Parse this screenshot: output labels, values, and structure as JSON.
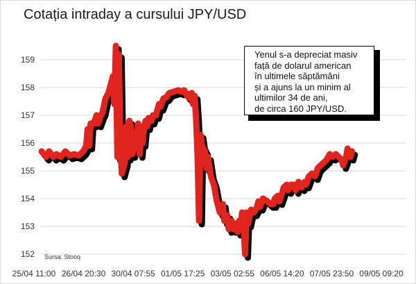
{
  "chart_data": {
    "type": "line",
    "title": "Cotația intraday a cursului JPY/USD",
    "xlabel": "",
    "ylabel": "",
    "ylim": [
      151.7,
      159.9
    ],
    "grid": true,
    "source": "Sursa: Stooq",
    "annotation": [
      "Yenul s-a depreciat masiv",
      "față de dolarul american",
      "în ultimele săptămâni",
      "și a ajuns la un minim al",
      "ultimilor 34 de ani,",
      "de circa 160 JPY/USD."
    ],
    "yticks": [
      152,
      153,
      154,
      155,
      156,
      157,
      158,
      159
    ],
    "xticks": [
      "25/04 11:00",
      "26/04 20:30",
      "30/04 07:55",
      "01/05 17:25",
      "03/05 02:55",
      "06/05 14:20",
      "07/05 23:50",
      "09/05 09:20"
    ],
    "x_count": 240,
    "series": [
      {
        "color": "#e0241e",
        "points": [
          [
            0,
            155.7
          ],
          [
            3,
            155.5
          ],
          [
            5,
            155.7
          ],
          [
            8,
            155.5
          ],
          [
            10,
            155.6
          ],
          [
            13,
            155.5
          ],
          [
            16,
            155.7
          ],
          [
            19,
            155.55
          ],
          [
            22,
            155.6
          ],
          [
            25,
            155.55
          ],
          [
            28,
            155.7
          ],
          [
            30,
            155.9
          ],
          [
            31,
            156.5
          ],
          [
            32,
            155.9
          ],
          [
            33,
            156.7
          ],
          [
            35,
            156.7
          ],
          [
            37,
            157.0
          ],
          [
            38,
            156.7
          ],
          [
            40,
            157.0
          ],
          [
            41,
            157.1
          ],
          [
            43,
            157.6
          ],
          [
            45,
            157.8
          ],
          [
            47,
            158.2
          ],
          [
            48,
            158.4
          ],
          [
            49,
            157.4
          ],
          [
            50,
            159.5
          ],
          [
            51,
            155.5
          ],
          [
            52,
            159.2
          ],
          [
            53,
            156.0
          ],
          [
            54,
            154.9
          ],
          [
            56,
            155.3
          ],
          [
            57,
            156.6
          ],
          [
            58,
            155.5
          ],
          [
            59,
            156.8
          ],
          [
            60,
            156.6
          ],
          [
            61,
            155.6
          ],
          [
            62,
            155.8
          ],
          [
            63,
            156.4
          ],
          [
            64,
            155.9
          ],
          [
            65,
            156.7
          ],
          [
            66,
            155.6
          ],
          [
            67,
            156.2
          ],
          [
            68,
            156.0
          ],
          [
            69,
            156.6
          ],
          [
            70,
            156.8
          ],
          [
            71,
            156.6
          ],
          [
            72,
            156.9
          ],
          [
            74,
            156.8
          ],
          [
            75,
            157.0
          ],
          [
            77,
            157.0
          ],
          [
            79,
            157.4
          ],
          [
            80,
            157.3
          ],
          [
            82,
            157.6
          ],
          [
            84,
            157.65
          ],
          [
            86,
            157.8
          ],
          [
            89,
            157.85
          ],
          [
            92,
            157.9
          ],
          [
            94,
            157.85
          ],
          [
            96,
            157.9
          ],
          [
            98,
            157.7
          ],
          [
            100,
            157.6
          ],
          [
            101,
            157.8
          ],
          [
            102,
            157.4
          ],
          [
            103,
            157.7
          ],
          [
            104,
            156.9
          ],
          [
            105,
            155.6
          ],
          [
            106,
            153.2
          ],
          [
            107,
            156.3
          ],
          [
            108,
            155.9
          ],
          [
            110,
            155.7
          ],
          [
            111,
            155.1
          ],
          [
            112,
            155.5
          ],
          [
            114,
            154.8
          ],
          [
            116,
            154.5
          ],
          [
            118,
            153.9
          ],
          [
            120,
            153.5
          ],
          [
            122,
            153.8
          ],
          [
            123,
            153.2
          ],
          [
            125,
            153.4
          ],
          [
            126,
            152.9
          ],
          [
            128,
            153.2
          ],
          [
            129,
            152.9
          ],
          [
            131,
            153.1
          ],
          [
            132,
            152.8
          ],
          [
            133,
            153.2
          ],
          [
            134,
            152.9
          ],
          [
            135,
            153.5
          ],
          [
            136,
            153.1
          ],
          [
            137,
            152.0
          ],
          [
            138,
            153.5
          ],
          [
            139,
            153.1
          ],
          [
            141,
            153.6
          ],
          [
            143,
            153.5
          ],
          [
            145,
            153.7
          ],
          [
            146,
            153.9
          ],
          [
            147,
            153.7
          ],
          [
            149,
            154.0
          ],
          [
            152,
            153.9
          ],
          [
            154,
            153.8
          ],
          [
            156,
            153.8
          ],
          [
            157,
            154.0
          ],
          [
            159,
            154.1
          ],
          [
            160,
            153.9
          ],
          [
            162,
            154.2
          ],
          [
            163,
            154.4
          ],
          [
            165,
            154.5
          ],
          [
            166,
            154.3
          ],
          [
            168,
            154.5
          ],
          [
            170,
            154.5
          ],
          [
            171,
            154.3
          ],
          [
            173,
            154.6
          ],
          [
            175,
            154.4
          ],
          [
            177,
            154.6
          ],
          [
            178,
            154.5
          ],
          [
            180,
            154.8
          ],
          [
            182,
            154.9
          ],
          [
            184,
            154.8
          ],
          [
            186,
            155.1
          ],
          [
            188,
            155.2
          ],
          [
            190,
            155.3
          ],
          [
            192,
            155.4
          ],
          [
            194,
            155.6
          ],
          [
            196,
            155.5
          ],
          [
            198,
            155.6
          ],
          [
            200,
            155.5
          ],
          [
            202,
            155.4
          ],
          [
            203,
            155.2
          ],
          [
            205,
            155.5
          ],
          [
            206,
            155.8
          ],
          [
            207,
            155.6
          ],
          [
            208,
            155.5
          ],
          [
            209,
            155.7
          ]
        ]
      }
    ]
  }
}
